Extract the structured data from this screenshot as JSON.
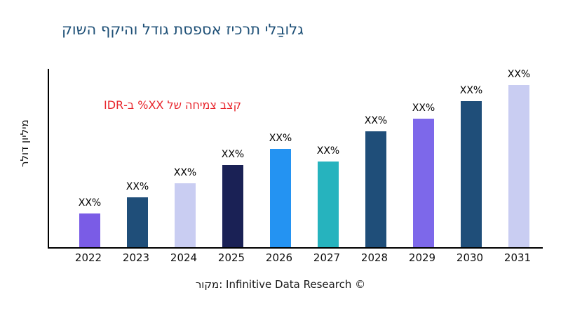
{
  "page": {
    "background": "#ffffff"
  },
  "title": {
    "text": "גלובַלי תרכיז אספסת גודל והיקף השוק",
    "color": "#1d4f76"
  },
  "growth_annotation": {
    "text": "קצב צמיחה של XX% ב-IDR",
    "color": "#e8262d"
  },
  "y_axis": {
    "label": "מיליון דולר"
  },
  "footer": {
    "text": "מקור: Infinitive Data Research ©"
  },
  "chart_data": {
    "type": "bar",
    "title": "גלובַלי תרכיז אספסת גודל והיקף השוק",
    "ylabel": "מיליון דולר",
    "xlabel": "",
    "categories": [
      "2022",
      "2023",
      "2024",
      "2025",
      "2026",
      "2027",
      "2028",
      "2029",
      "2030",
      "2031"
    ],
    "data_labels": [
      "XX%",
      "XX%",
      "XX%",
      "XX%",
      "XX%",
      "XX%",
      "XX%",
      "XX%",
      "XX%",
      "XX%"
    ],
    "values_pct_of_max": [
      21,
      31,
      40,
      50,
      60,
      53,
      71,
      79,
      90,
      100
    ],
    "heights_pct_of_plot": [
      19,
      28,
      36,
      46,
      55,
      48,
      65,
      72,
      82,
      91
    ],
    "bar_colors": [
      "#7a5ce6",
      "#1f4e79",
      "#c9cdf2",
      "#1a2155",
      "#2493f2",
      "#26b3be",
      "#1f4e79",
      "#7d68ea",
      "#1f4e79",
      "#c9cdf2"
    ],
    "axis_color": "#000000",
    "grid": false,
    "legend": false
  }
}
